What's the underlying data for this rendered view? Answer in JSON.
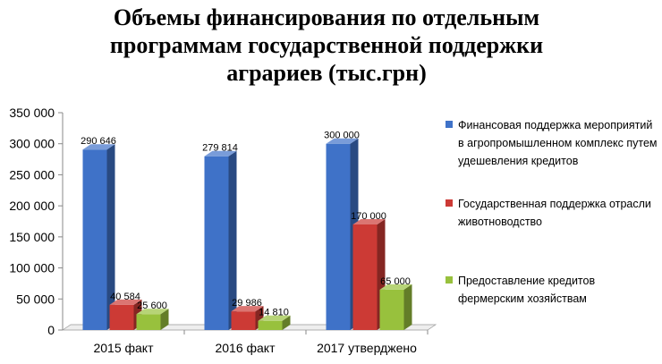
{
  "title_lines": [
    "Объемы финансирования по отдельным",
    "программам государственной  поддержки",
    "аграриев  (тыс.грн)"
  ],
  "chart_data": {
    "type": "bar",
    "categories": [
      "2015 факт",
      "2016 факт",
      "2017 утверджено"
    ],
    "series": [
      {
        "name": "Финансовая поддержка мероприятий в агропромышленном комплекс путем удешевления кредитов",
        "color": "#3f72c8",
        "values": [
          290646,
          279814,
          300000
        ],
        "labels": [
          "290 646",
          "279 814",
          "300 000"
        ]
      },
      {
        "name": "Государственная поддержка отрасли животноводство",
        "color": "#cc3a35",
        "values": [
          40584,
          29986,
          170000
        ],
        "labels": [
          "40 584",
          "29 986",
          "170 000"
        ]
      },
      {
        "name": "Предоставление кредитов фермерским хозяйствам",
        "color": "#98c13d",
        "values": [
          25600,
          14810,
          65000
        ],
        "labels": [
          "25 600",
          "14 810",
          "65 000"
        ]
      }
    ],
    "ylim": [
      0,
      350000
    ],
    "yticks": [
      0,
      50000,
      100000,
      150000,
      200000,
      250000,
      300000,
      350000
    ],
    "ytick_labels": [
      "0",
      "50 000",
      "100 000",
      "150 000",
      "200 000",
      "250 000",
      "300 000",
      "350 000"
    ],
    "grid": false,
    "legend_position": "right",
    "style": "3d-column"
  }
}
